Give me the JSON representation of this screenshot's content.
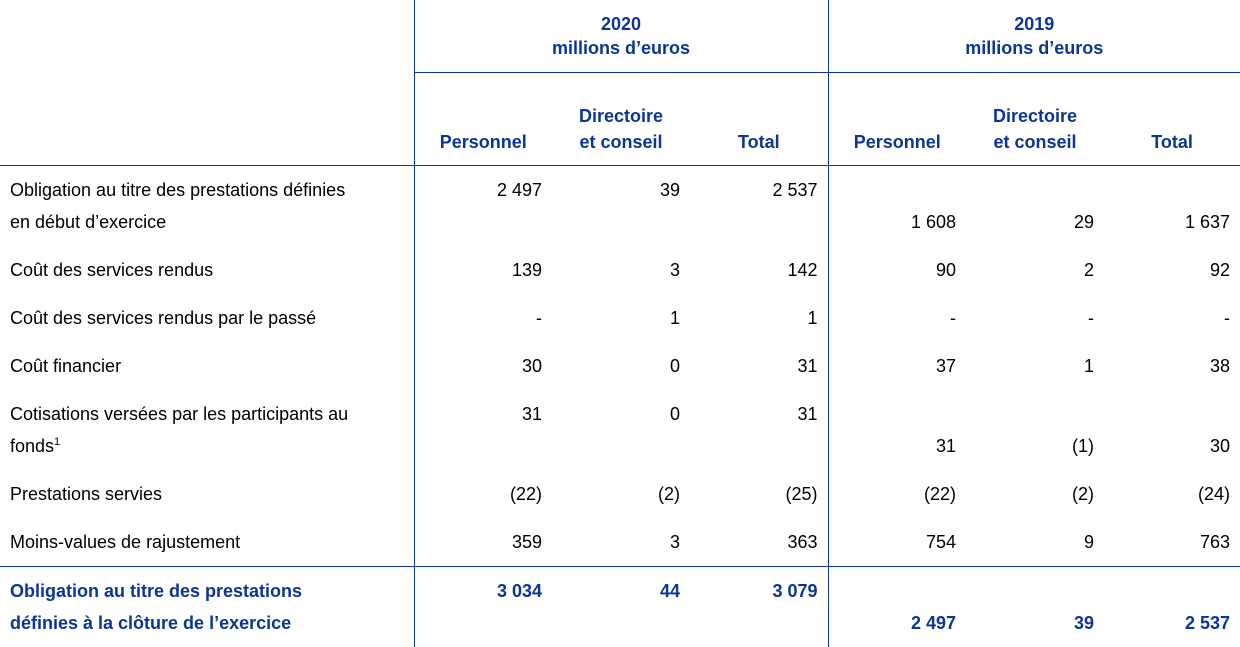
{
  "header": {
    "groups": [
      {
        "year": "2020",
        "unit": "millions d’euros"
      },
      {
        "year": "2019",
        "unit": "millions d’euros"
      }
    ],
    "columns": [
      [
        "Personnel"
      ],
      [
        "Directoire",
        "et conseil"
      ],
      [
        "Total"
      ],
      [
        "Personnel"
      ],
      [
        "Directoire",
        "et conseil"
      ],
      [
        "Total"
      ]
    ]
  },
  "table": {
    "rows": [
      {
        "label": [
          "Obligation au titre des prestations définies",
          "en début d’exercice"
        ],
        "values": [
          "2 497",
          "39",
          "2 537",
          "1 608",
          "29",
          "1 637"
        ]
      },
      {
        "label": [
          "Coût des services rendus"
        ],
        "values": [
          "139",
          "3",
          "142",
          "90",
          "2",
          "92"
        ]
      },
      {
        "label": [
          "Coût des services rendus par le passé"
        ],
        "values": [
          "-",
          "1",
          "1",
          "-",
          "-",
          "-"
        ]
      },
      {
        "label": [
          "Coût financier"
        ],
        "values": [
          "30",
          "0",
          "31",
          "37",
          "1",
          "38"
        ]
      },
      {
        "label": [
          "Cotisations versées par les participants au",
          "fonds"
        ],
        "footnote": "1",
        "values": [
          "31",
          "0",
          "31",
          "31",
          "(1)",
          "30"
        ]
      },
      {
        "label": [
          "Prestations servies"
        ],
        "values": [
          "(22)",
          "(2)",
          "(25)",
          "(22)",
          "(2)",
          "(24)"
        ]
      },
      {
        "label": [
          "Moins-values de rajustement"
        ],
        "values": [
          "359",
          "3",
          "363",
          "754",
          "9",
          "763"
        ]
      }
    ],
    "total": {
      "label": [
        "Obligation au titre des prestations",
        "définies à la clôture de l’exercice"
      ],
      "values": [
        "3 034",
        "44",
        "3 079",
        "2 497",
        "39",
        "2 537"
      ]
    }
  }
}
